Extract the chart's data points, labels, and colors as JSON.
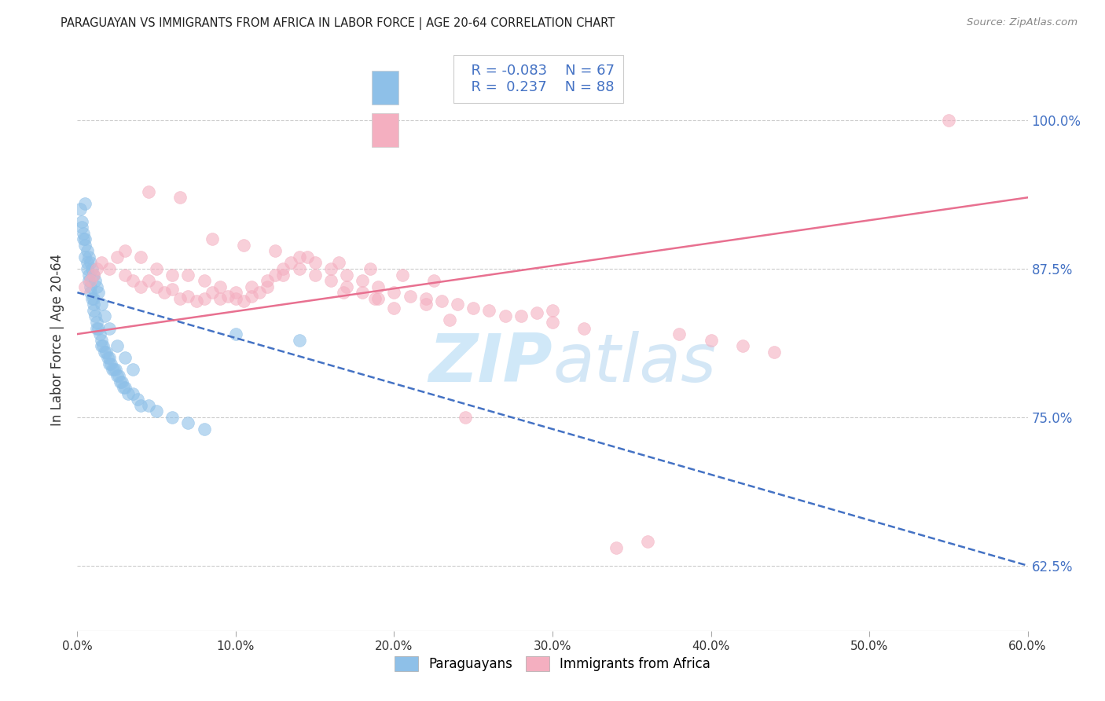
{
  "title": "PARAGUAYAN VS IMMIGRANTS FROM AFRICA IN LABOR FORCE | AGE 20-64 CORRELATION CHART",
  "source": "Source: ZipAtlas.com",
  "xlabel_vals": [
    0.0,
    10.0,
    20.0,
    30.0,
    40.0,
    50.0,
    60.0
  ],
  "ylabel_vals": [
    62.5,
    75.0,
    87.5,
    100.0
  ],
  "xlim": [
    0.0,
    60.0
  ],
  "ylim": [
    57.0,
    106.0
  ],
  "ylabel": "In Labor Force | Age 20-64",
  "legend_blue_label": "Paraguayans",
  "legend_pink_label": "Immigrants from Africa",
  "R_blue": -0.083,
  "N_blue": 67,
  "R_pink": 0.237,
  "N_pink": 88,
  "blue_color": "#8ec0e8",
  "pink_color": "#f4afc0",
  "blue_line_color": "#4472c4",
  "pink_line_color": "#e87090",
  "watermark_zip": "ZIP",
  "watermark_atlas": "atlas",
  "watermark_color": "#d0e8f8",
  "blue_line_x0": 0.0,
  "blue_line_x1": 60.0,
  "blue_line_y0": 85.5,
  "blue_line_y1": 62.5,
  "pink_line_x0": 0.0,
  "pink_line_x1": 60.0,
  "pink_line_y0": 82.0,
  "pink_line_y1": 93.5,
  "blue_scatter_x": [
    0.3,
    0.4,
    0.5,
    0.5,
    0.6,
    0.6,
    0.7,
    0.7,
    0.8,
    0.8,
    0.9,
    1.0,
    1.0,
    1.0,
    1.1,
    1.2,
    1.2,
    1.3,
    1.4,
    1.5,
    1.5,
    1.6,
    1.7,
    1.8,
    1.9,
    2.0,
    2.0,
    2.1,
    2.2,
    2.3,
    2.4,
    2.5,
    2.6,
    2.7,
    2.8,
    2.9,
    3.0,
    3.2,
    3.5,
    3.8,
    4.0,
    4.5,
    5.0,
    6.0,
    7.0,
    8.0,
    0.2,
    0.3,
    0.4,
    0.5,
    0.6,
    0.7,
    0.8,
    0.9,
    1.0,
    1.1,
    1.2,
    1.3,
    1.5,
    1.7,
    2.0,
    2.5,
    3.0,
    3.5,
    10.0,
    14.0,
    0.5
  ],
  "blue_scatter_y": [
    91.0,
    90.0,
    89.5,
    88.5,
    88.0,
    87.5,
    87.0,
    86.5,
    86.0,
    85.5,
    85.0,
    85.0,
    84.5,
    84.0,
    83.5,
    83.0,
    82.5,
    82.5,
    82.0,
    81.5,
    81.0,
    81.0,
    80.5,
    80.5,
    80.0,
    80.0,
    79.5,
    79.5,
    79.0,
    79.0,
    79.0,
    78.5,
    78.5,
    78.0,
    78.0,
    77.5,
    77.5,
    77.0,
    77.0,
    76.5,
    76.0,
    76.0,
    75.5,
    75.0,
    74.5,
    74.0,
    92.5,
    91.5,
    90.5,
    90.0,
    89.0,
    88.5,
    88.0,
    87.5,
    87.0,
    86.5,
    86.0,
    85.5,
    84.5,
    83.5,
    82.5,
    81.0,
    80.0,
    79.0,
    82.0,
    81.5,
    93.0
  ],
  "pink_scatter_x": [
    0.5,
    0.8,
    1.0,
    1.2,
    1.5,
    2.0,
    2.5,
    3.0,
    3.5,
    4.0,
    4.5,
    5.0,
    5.5,
    6.0,
    6.5,
    7.0,
    7.5,
    8.0,
    8.5,
    9.0,
    9.5,
    10.0,
    10.5,
    11.0,
    11.5,
    12.0,
    12.5,
    13.0,
    13.5,
    14.0,
    15.0,
    16.0,
    17.0,
    18.0,
    19.0,
    20.0,
    21.0,
    22.0,
    23.0,
    24.0,
    25.0,
    3.0,
    4.0,
    5.0,
    6.0,
    7.0,
    8.0,
    9.0,
    10.0,
    11.0,
    12.0,
    13.0,
    14.0,
    15.0,
    16.0,
    17.0,
    18.0,
    19.0,
    4.5,
    6.5,
    8.5,
    10.5,
    12.5,
    14.5,
    16.5,
    18.5,
    20.5,
    22.5,
    24.5,
    55.0,
    28.0,
    30.0,
    32.0,
    22.0,
    26.0,
    20.0,
    38.0,
    40.0,
    42.0,
    44.0,
    30.0,
    29.0,
    27.0,
    23.5,
    34.0,
    36.0,
    16.8,
    18.8
  ],
  "pink_scatter_y": [
    86.0,
    86.5,
    87.0,
    87.5,
    88.0,
    87.5,
    88.5,
    87.0,
    86.5,
    86.0,
    86.5,
    86.0,
    85.5,
    85.8,
    85.0,
    85.2,
    84.8,
    85.0,
    85.5,
    85.0,
    85.2,
    85.0,
    84.8,
    85.2,
    85.5,
    86.0,
    87.0,
    87.5,
    88.0,
    88.5,
    88.0,
    87.5,
    87.0,
    86.5,
    86.0,
    85.5,
    85.2,
    85.0,
    84.8,
    84.5,
    84.2,
    89.0,
    88.5,
    87.5,
    87.0,
    87.0,
    86.5,
    86.0,
    85.5,
    86.0,
    86.5,
    87.0,
    87.5,
    87.0,
    86.5,
    86.0,
    85.5,
    85.0,
    94.0,
    93.5,
    90.0,
    89.5,
    89.0,
    88.5,
    88.0,
    87.5,
    87.0,
    86.5,
    75.0,
    100.0,
    83.5,
    83.0,
    82.5,
    84.5,
    84.0,
    84.2,
    82.0,
    81.5,
    81.0,
    80.5,
    84.0,
    83.8,
    83.5,
    83.2,
    64.0,
    64.5,
    85.5,
    85.0
  ]
}
